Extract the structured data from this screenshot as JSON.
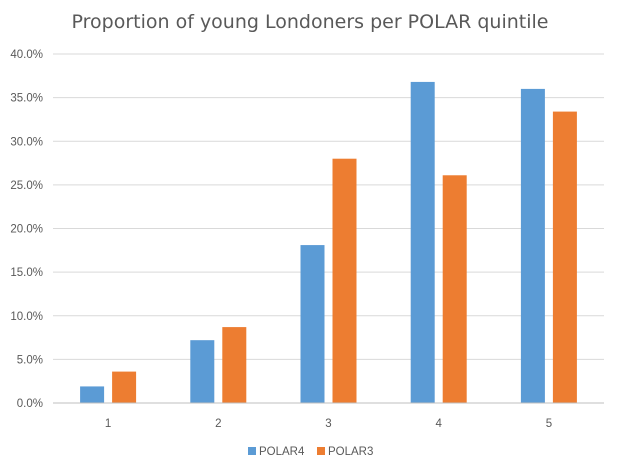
{
  "chart_data": {
    "type": "bar",
    "title": "Proportion of young Londoners per POLAR quintile",
    "xlabel": "",
    "ylabel": "",
    "categories": [
      "1",
      "2",
      "3",
      "4",
      "5"
    ],
    "series": [
      {
        "name": "POLAR4",
        "color": "#5b9bd5",
        "values": [
          1.9,
          7.2,
          18.1,
          36.8,
          36.0
        ]
      },
      {
        "name": "POLAR3",
        "color": "#ed7d31",
        "values": [
          3.6,
          8.7,
          28.0,
          26.1,
          33.4
        ]
      }
    ],
    "ylim": [
      0,
      40
    ],
    "yticks": [
      0,
      5,
      10,
      15,
      20,
      25,
      30,
      35,
      40
    ],
    "ytick_labels": [
      "0.0%",
      "5.0%",
      "10.0%",
      "15.0%",
      "20.0%",
      "25.0%",
      "30.0%",
      "35.0%",
      "40.0%"
    ],
    "grid": true,
    "legend_position": "bottom"
  }
}
